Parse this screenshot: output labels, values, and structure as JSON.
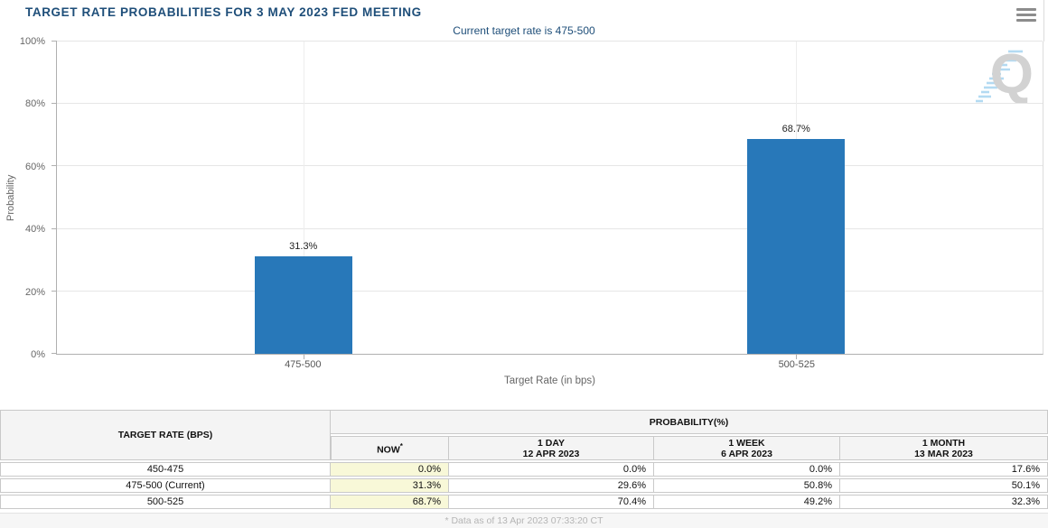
{
  "header": {
    "title": "TARGET RATE PROBABILITIES FOR 3 MAY 2023 FED MEETING"
  },
  "chart": {
    "watermark_letter": "Q",
    "navy_color": "#1e4e79"
  },
  "chart_data": {
    "type": "bar",
    "title": "TARGET RATE PROBABILITIES FOR 3 MAY 2023 FED MEETING",
    "subtitle": "Current target rate is 475-500",
    "categories": [
      "475-500",
      "500-525"
    ],
    "values": [
      31.3,
      68.7
    ],
    "value_labels": [
      "31.3%",
      "68.7%"
    ],
    "xlabel": "Target Rate (in bps)",
    "ylabel": "Probability",
    "ylim": [
      0,
      100
    ],
    "yticks": [
      "0%",
      "20%",
      "40%",
      "60%",
      "80%",
      "100%"
    ],
    "grid": true,
    "legend": "none",
    "bar_color": "#2878b9"
  },
  "table": {
    "col1_header": "TARGET RATE (BPS)",
    "group_header": "PROBABILITY(%)",
    "columns": [
      {
        "line1": "NOW",
        "sup": "*",
        "line2": ""
      },
      {
        "line1": "1 DAY",
        "sup": "",
        "line2": "12 APR 2023"
      },
      {
        "line1": "1 WEEK",
        "sup": "",
        "line2": "6 APR 2023"
      },
      {
        "line1": "1 MONTH",
        "sup": "",
        "line2": "13 MAR 2023"
      }
    ],
    "rows": [
      {
        "rate": "450-475",
        "now": "0.0%",
        "day": "0.0%",
        "week": "0.0%",
        "month": "17.6%"
      },
      {
        "rate": "475-500 (Current)",
        "now": "31.3%",
        "day": "29.6%",
        "week": "50.8%",
        "month": "50.1%"
      },
      {
        "rate": "500-525",
        "now": "68.7%",
        "day": "70.4%",
        "week": "49.2%",
        "month": "32.3%"
      }
    ]
  },
  "footer": {
    "note": "* Data as of 13 Apr 2023 07:33:20 CT"
  }
}
